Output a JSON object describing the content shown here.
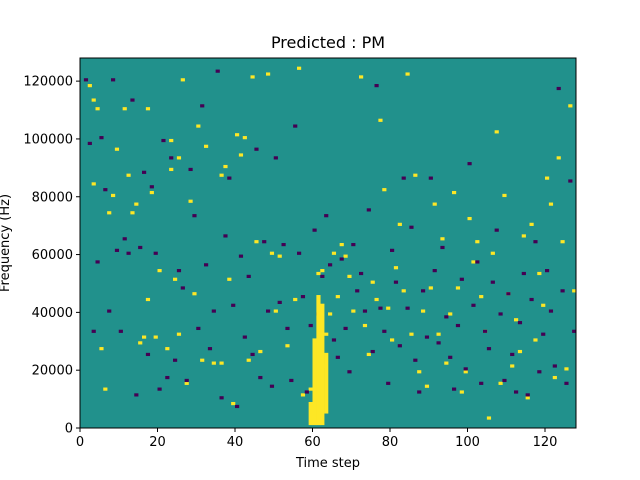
{
  "chart_data": {
    "type": "heatmap",
    "title": "Predicted : PM",
    "xlabel": "Time step",
    "ylabel": "Frequency (Hz)",
    "xlim": [
      0,
      128
    ],
    "ylim": [
      0,
      128000
    ],
    "x_ticks": [
      "0",
      "20",
      "40",
      "60",
      "80",
      "100",
      "120"
    ],
    "y_ticks": [
      "0",
      "20000",
      "40000",
      "60000",
      "80000",
      "100000",
      "120000"
    ],
    "grid": false,
    "legend": "none",
    "colors": {
      "background": "#21918c",
      "high": "#fde725",
      "low": "#440154"
    },
    "levels": [
      "low",
      "mid",
      "high"
    ],
    "yellow_cells": [
      [
        2,
        118
      ],
      [
        3,
        113
      ],
      [
        3,
        84
      ],
      [
        4,
        110
      ],
      [
        5,
        27
      ],
      [
        6,
        13
      ],
      [
        7,
        74
      ],
      [
        8,
        80
      ],
      [
        9,
        96
      ],
      [
        11,
        110
      ],
      [
        12,
        87
      ],
      [
        13,
        74
      ],
      [
        14,
        77
      ],
      [
        15,
        29
      ],
      [
        16,
        31
      ],
      [
        17,
        44
      ],
      [
        17,
        110
      ],
      [
        18,
        81
      ],
      [
        19,
        31
      ],
      [
        20,
        54
      ],
      [
        22,
        27
      ],
      [
        23,
        89
      ],
      [
        23,
        99
      ],
      [
        24,
        51
      ],
      [
        25,
        32
      ],
      [
        25,
        93
      ],
      [
        26,
        120
      ],
      [
        27,
        15
      ],
      [
        28,
        78
      ],
      [
        29,
        46
      ],
      [
        30,
        104
      ],
      [
        31,
        23
      ],
      [
        32,
        97
      ],
      [
        34,
        22
      ],
      [
        36,
        87
      ],
      [
        36,
        22
      ],
      [
        37,
        90
      ],
      [
        38,
        51
      ],
      [
        39,
        8
      ],
      [
        40,
        101
      ],
      [
        41,
        94
      ],
      [
        42,
        100
      ],
      [
        43,
        23
      ],
      [
        44,
        121
      ],
      [
        45,
        64
      ],
      [
        46,
        26
      ],
      [
        48,
        122
      ],
      [
        49,
        60
      ],
      [
        50,
        40
      ],
      [
        51,
        59
      ],
      [
        53,
        28
      ],
      [
        55,
        44
      ],
      [
        56,
        124
      ],
      [
        57,
        11
      ],
      [
        59,
        13
      ],
      [
        60,
        20
      ],
      [
        61,
        21
      ],
      [
        61,
        53
      ],
      [
        62,
        21
      ],
      [
        62,
        54
      ],
      [
        63,
        32
      ],
      [
        64,
        39
      ],
      [
        65,
        60
      ],
      [
        66,
        45
      ],
      [
        67,
        63
      ],
      [
        68,
        59
      ],
      [
        69,
        52
      ],
      [
        70,
        40
      ],
      [
        72,
        121
      ],
      [
        73,
        35
      ],
      [
        74,
        25
      ],
      [
        75,
        50
      ],
      [
        76,
        44
      ],
      [
        77,
        106
      ],
      [
        78,
        82
      ],
      [
        79,
        41
      ],
      [
        80,
        30
      ],
      [
        81,
        55
      ],
      [
        82,
        70
      ],
      [
        83,
        47
      ],
      [
        84,
        122
      ],
      [
        85,
        32
      ],
      [
        86,
        87
      ],
      [
        87,
        19
      ],
      [
        88,
        40
      ],
      [
        89,
        14
      ],
      [
        90,
        48
      ],
      [
        91,
        77
      ],
      [
        92,
        32
      ],
      [
        93,
        65
      ],
      [
        94,
        22
      ],
      [
        95,
        39
      ],
      [
        96,
        81
      ],
      [
        97,
        48
      ],
      [
        98,
        12
      ],
      [
        99,
        19
      ],
      [
        100,
        72
      ],
      [
        101,
        57
      ],
      [
        102,
        64
      ],
      [
        103,
        45
      ],
      [
        104,
        33
      ],
      [
        105,
        3
      ],
      [
        106,
        60
      ],
      [
        107,
        102
      ],
      [
        108,
        15
      ],
      [
        109,
        80
      ],
      [
        110,
        46
      ],
      [
        111,
        21
      ],
      [
        112,
        37
      ],
      [
        113,
        26
      ],
      [
        114,
        66
      ],
      [
        115,
        10
      ],
      [
        116,
        70
      ],
      [
        117,
        30
      ],
      [
        118,
        53
      ],
      [
        119,
        42
      ],
      [
        120,
        86
      ],
      [
        121,
        77
      ],
      [
        122,
        17
      ],
      [
        123,
        93
      ],
      [
        124,
        64
      ],
      [
        125,
        20
      ],
      [
        126,
        111
      ],
      [
        127,
        47
      ]
    ],
    "purple_cells": [
      [
        1,
        120
      ],
      [
        2,
        98
      ],
      [
        3,
        33
      ],
      [
        4,
        57
      ],
      [
        5,
        100
      ],
      [
        6,
        82
      ],
      [
        7,
        40
      ],
      [
        8,
        120
      ],
      [
        9,
        61
      ],
      [
        10,
        33
      ],
      [
        11,
        65
      ],
      [
        12,
        60
      ],
      [
        13,
        113
      ],
      [
        14,
        11
      ],
      [
        15,
        62
      ],
      [
        16,
        88
      ],
      [
        17,
        25
      ],
      [
        18,
        83
      ],
      [
        19,
        60
      ],
      [
        20,
        13
      ],
      [
        21,
        99
      ],
      [
        22,
        17
      ],
      [
        23,
        93
      ],
      [
        24,
        23
      ],
      [
        25,
        54
      ],
      [
        26,
        48
      ],
      [
        27,
        16
      ],
      [
        28,
        89
      ],
      [
        29,
        73
      ],
      [
        30,
        34
      ],
      [
        31,
        111
      ],
      [
        32,
        56
      ],
      [
        33,
        27
      ],
      [
        34,
        40
      ],
      [
        35,
        123
      ],
      [
        36,
        10
      ],
      [
        37,
        66
      ],
      [
        38,
        86
      ],
      [
        39,
        42
      ],
      [
        40,
        7
      ],
      [
        41,
        59
      ],
      [
        42,
        31
      ],
      [
        43,
        52
      ],
      [
        44,
        25
      ],
      [
        45,
        96
      ],
      [
        46,
        17
      ],
      [
        47,
        64
      ],
      [
        48,
        40
      ],
      [
        49,
        14
      ],
      [
        50,
        93
      ],
      [
        51,
        43
      ],
      [
        52,
        63
      ],
      [
        53,
        34
      ],
      [
        54,
        16
      ],
      [
        55,
        104
      ],
      [
        56,
        60
      ],
      [
        57,
        45
      ],
      [
        58,
        12
      ],
      [
        59,
        35
      ],
      [
        60,
        68
      ],
      [
        61,
        39
      ],
      [
        62,
        52
      ],
      [
        63,
        73
      ],
      [
        64,
        56
      ],
      [
        65,
        30
      ],
      [
        66,
        24
      ],
      [
        67,
        58
      ],
      [
        68,
        34
      ],
      [
        69,
        19
      ],
      [
        70,
        63
      ],
      [
        71,
        47
      ],
      [
        72,
        53
      ],
      [
        73,
        40
      ],
      [
        74,
        75
      ],
      [
        75,
        26
      ],
      [
        76,
        118
      ],
      [
        77,
        41
      ],
      [
        78,
        33
      ],
      [
        79,
        15
      ],
      [
        80,
        61
      ],
      [
        81,
        50
      ],
      [
        82,
        28
      ],
      [
        83,
        86
      ],
      [
        84,
        41
      ],
      [
        85,
        69
      ],
      [
        86,
        23
      ],
      [
        87,
        12
      ],
      [
        88,
        47
      ],
      [
        89,
        31
      ],
      [
        90,
        86
      ],
      [
        91,
        54
      ],
      [
        92,
        29
      ],
      [
        93,
        62
      ],
      [
        94,
        38
      ],
      [
        95,
        24
      ],
      [
        96,
        13
      ],
      [
        97,
        35
      ],
      [
        98,
        51
      ],
      [
        99,
        20
      ],
      [
        100,
        91
      ],
      [
        101,
        42
      ],
      [
        102,
        57
      ],
      [
        103,
        15
      ],
      [
        104,
        33
      ],
      [
        105,
        27
      ],
      [
        106,
        50
      ],
      [
        107,
        68
      ],
      [
        108,
        39
      ],
      [
        109,
        16
      ],
      [
        110,
        46
      ],
      [
        111,
        25
      ],
      [
        112,
        12
      ],
      [
        113,
        36
      ],
      [
        114,
        53
      ],
      [
        115,
        11
      ],
      [
        116,
        44
      ],
      [
        117,
        64
      ],
      [
        118,
        19
      ],
      [
        119,
        32
      ],
      [
        120,
        54
      ],
      [
        121,
        40
      ],
      [
        122,
        21
      ],
      [
        123,
        117
      ],
      [
        124,
        47
      ],
      [
        125,
        15
      ],
      [
        126,
        85
      ],
      [
        127,
        33
      ]
    ]
  }
}
